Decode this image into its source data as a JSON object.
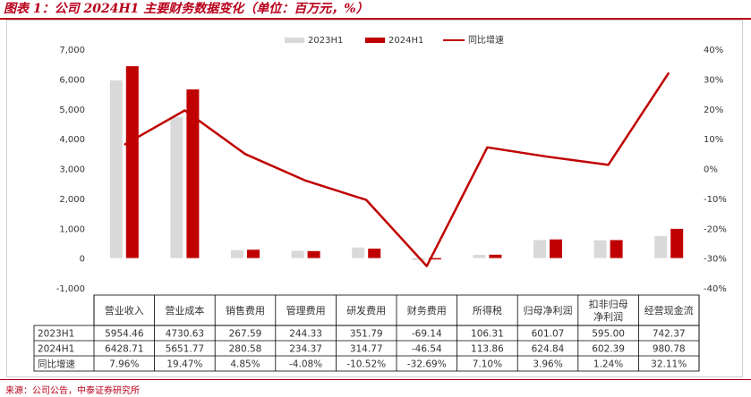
{
  "figure_title": "图表 1：公司 2024H1 主要财务数据变化（单位：百万元，%）",
  "source": "来源：公司公告，中泰证券研究所",
  "colors": {
    "series_2023": "#d9d9d9",
    "series_2024": "#c00000",
    "yoy_line": "#c00000",
    "accent": "#b8001b"
  },
  "chart_data": {
    "type": "bar",
    "categories": [
      "营业收入",
      "营业成本",
      "销售费用",
      "管理费用",
      "研发费用",
      "财务费用",
      "所得税",
      "归母净利润",
      "扣非归母\n净利润",
      "经营现金流"
    ],
    "series": [
      {
        "name": "2023H1",
        "type": "bar",
        "axis": "left",
        "values": [
          5954.46,
          4730.63,
          267.59,
          244.33,
          351.79,
          -69.14,
          106.31,
          601.07,
          595.0,
          742.37
        ],
        "labels": [
          "5954.46",
          "4730.63",
          "267.59",
          "244.33",
          "351.79",
          "-69.14",
          "106.31",
          "601.07",
          "595.00",
          "742.37"
        ]
      },
      {
        "name": "2024H1",
        "type": "bar",
        "axis": "left",
        "values": [
          6428.71,
          5651.77,
          280.58,
          234.37,
          314.77,
          -46.54,
          113.86,
          624.84,
          602.39,
          980.78
        ],
        "labels": [
          "6428.71",
          "5651.77",
          "280.58",
          "234.37",
          "314.77",
          "-46.54",
          "113.86",
          "624.84",
          "602.39",
          "980.78"
        ]
      },
      {
        "name": "同比增速",
        "type": "line",
        "axis": "right",
        "values": [
          7.96,
          19.47,
          4.85,
          -4.08,
          -10.52,
          -32.69,
          7.1,
          3.96,
          1.24,
          32.11
        ],
        "labels": [
          "7.96%",
          "19.47%",
          "4.85%",
          "-4.08%",
          "-10.52%",
          "-32.69%",
          "7.10%",
          "3.96%",
          "1.24%",
          "32.11%"
        ]
      }
    ],
    "y_left": {
      "min": -1000,
      "max": 7000,
      "step": 1000,
      "ticks": [
        "-1,000",
        "0",
        "1,000",
        "2,000",
        "3,000",
        "4,000",
        "5,000",
        "6,000",
        "7,000"
      ]
    },
    "y_right": {
      "min": -40,
      "max": 40,
      "step": 10,
      "ticks": [
        "-40%",
        "-30%",
        "-20%",
        "-10%",
        "0%",
        "10%",
        "20%",
        "30%",
        "40%"
      ]
    },
    "legend": {
      "position": "top",
      "entries": [
        "2023H1",
        "2024H1",
        "同比增速"
      ]
    },
    "data_table": true,
    "grid": false
  }
}
